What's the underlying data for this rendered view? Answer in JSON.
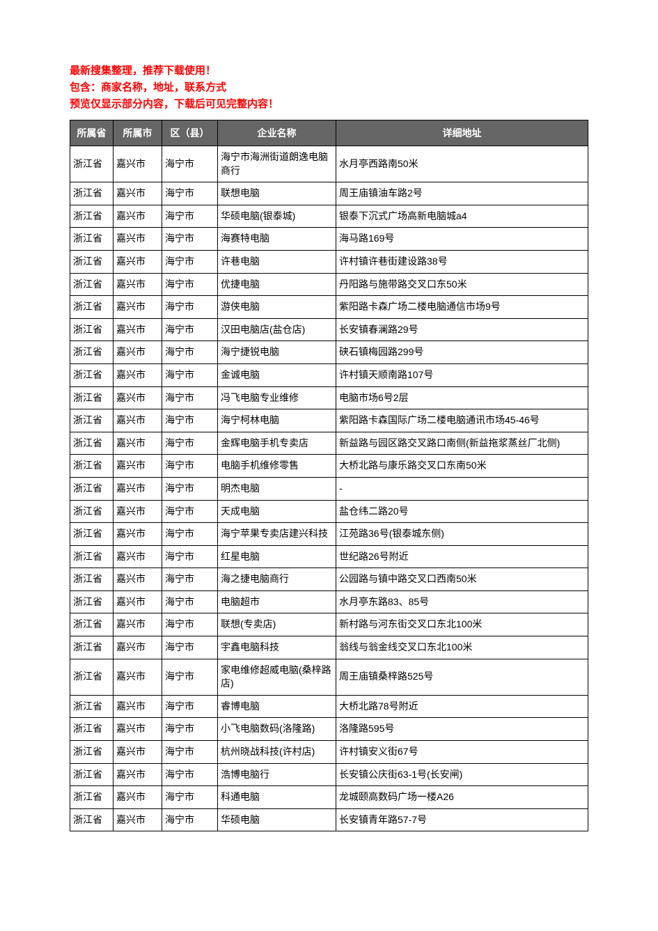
{
  "header": {
    "line1": "最新搜集整理，推荐下载使用！",
    "line2": "包含：商家名称，地址，联系方式",
    "line3": "预览仅显示部分内容，下载后可见完整内容！",
    "color": "#ff0000"
  },
  "table": {
    "header_bg": "#666666",
    "header_fg": "#ffffff",
    "border_color": "#000000",
    "columns": [
      "所属省",
      "所属市",
      "区（县）",
      "企业名称",
      "详细地址"
    ],
    "rows": [
      [
        "浙江省",
        "嘉兴市",
        "海宁市",
        "海宁市海洲街道朗逸电脑商行",
        "水月亭西路南50米"
      ],
      [
        "浙江省",
        "嘉兴市",
        "海宁市",
        "联想电脑",
        "周王庙镇油车路2号"
      ],
      [
        "浙江省",
        "嘉兴市",
        "海宁市",
        "华硕电脑(银泰城)",
        "银泰下沉式广场高新电脑城a4"
      ],
      [
        "浙江省",
        "嘉兴市",
        "海宁市",
        "海赛特电脑",
        "海马路169号"
      ],
      [
        "浙江省",
        "嘉兴市",
        "海宁市",
        "许巷电脑",
        "许村镇许巷街建设路38号"
      ],
      [
        "浙江省",
        "嘉兴市",
        "海宁市",
        "优捷电脑",
        "丹阳路与施带路交叉口东50米"
      ],
      [
        "浙江省",
        "嘉兴市",
        "海宁市",
        "游侠电脑",
        "紫阳路卡森广场二楼电脑通信市场9号"
      ],
      [
        "浙江省",
        "嘉兴市",
        "海宁市",
        "汉田电脑店(盐仓店)",
        "长安镇春澜路29号"
      ],
      [
        "浙江省",
        "嘉兴市",
        "海宁市",
        "海宁捷锐电脑",
        "硖石镇梅园路299号"
      ],
      [
        "浙江省",
        "嘉兴市",
        "海宁市",
        "金诚电脑",
        "许村镇天顺南路107号"
      ],
      [
        "浙江省",
        "嘉兴市",
        "海宁市",
        "冯飞电脑专业维修",
        "电脑市场6号2层"
      ],
      [
        "浙江省",
        "嘉兴市",
        "海宁市",
        "海宁柯林电脑",
        "紫阳路卡森国际广场二楼电脑通讯市场45-46号"
      ],
      [
        "浙江省",
        "嘉兴市",
        "海宁市",
        "金辉电脑手机专卖店",
        "新益路与园区路交叉路口南侧(新益拖浆蒸丝厂北侧)"
      ],
      [
        "浙江省",
        "嘉兴市",
        "海宁市",
        "电脑手机维修零售",
        "大桥北路与康乐路交叉口东南50米"
      ],
      [
        "浙江省",
        "嘉兴市",
        "海宁市",
        "明杰电脑",
        "-"
      ],
      [
        "浙江省",
        "嘉兴市",
        "海宁市",
        "天成电脑",
        "盐仓纬二路20号"
      ],
      [
        "浙江省",
        "嘉兴市",
        "海宁市",
        "海宁苹果专卖店建兴科技",
        "江苑路36号(银泰城东侧)"
      ],
      [
        "浙江省",
        "嘉兴市",
        "海宁市",
        "红星电脑",
        "世纪路26号附近"
      ],
      [
        "浙江省",
        "嘉兴市",
        "海宁市",
        "海之捷电脑商行",
        "公园路与镇中路交叉口西南50米"
      ],
      [
        "浙江省",
        "嘉兴市",
        "海宁市",
        "电脑超市",
        "水月亭东路83、85号"
      ],
      [
        "浙江省",
        "嘉兴市",
        "海宁市",
        "联想(专卖店)",
        "新村路与河东街交叉口东北100米"
      ],
      [
        "浙江省",
        "嘉兴市",
        "海宁市",
        "宇鑫电脑科技",
        "翁线与翁金线交叉口东北100米"
      ],
      [
        "浙江省",
        "嘉兴市",
        "海宁市",
        "家电维修超威电脑(桑梓路店)",
        "周王庙镇桑梓路525号"
      ],
      [
        "浙江省",
        "嘉兴市",
        "海宁市",
        "睿博电脑",
        "大桥北路78号附近"
      ],
      [
        "浙江省",
        "嘉兴市",
        "海宁市",
        "小飞电脑数码(洛隆路)",
        "洛隆路595号"
      ],
      [
        "浙江省",
        "嘉兴市",
        "海宁市",
        "杭州晓战科技(许村店)",
        "许村镇安义街67号"
      ],
      [
        "浙江省",
        "嘉兴市",
        "海宁市",
        "浩博电脑行",
        "长安镇公庆街63-1号(长安闸)"
      ],
      [
        "浙江省",
        "嘉兴市",
        "海宁市",
        "科通电脑",
        "龙城颐高数码广场一楼A26"
      ],
      [
        "浙江省",
        "嘉兴市",
        "海宁市",
        "华硕电脑",
        "长安镇青年路57-7号"
      ]
    ]
  }
}
